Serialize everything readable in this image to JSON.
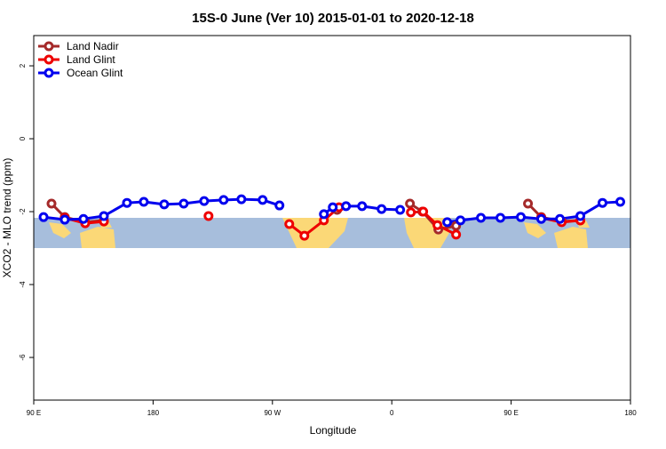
{
  "chart_data": {
    "type": "line",
    "title": "15S-0 June (Ver 10)   2015-01-01 to 2020-12-18",
    "x_label": "Longitude",
    "y_label": "XCO2 - MLO trend (ppm)",
    "xlim": [
      90,
      540
    ],
    "ylim": [
      -7.17,
      2.83
    ],
    "xticks": [
      {
        "value": 90,
        "label": "90 E"
      },
      {
        "value": 180,
        "label": "180"
      },
      {
        "value": 270,
        "label": "90 W"
      },
      {
        "value": 360,
        "label": "0"
      },
      {
        "value": 450,
        "label": "90 E"
      },
      {
        "value": 540,
        "label": "180"
      }
    ],
    "yticks": [
      2,
      0,
      -2,
      -4,
      -6
    ],
    "legend": "top-left",
    "series": [
      {
        "name": "Land Nadir",
        "color": "#a52a2a",
        "x": [
          103.4,
          113.4,
          128.8,
          142.9,
          null,
          318.8,
          null,
          373.7,
          383.1,
          395.1,
          408.5,
          null,
          462.7,
          472.7,
          488.1,
          502.2
        ],
        "values": [
          -1.78,
          -2.15,
          -2.29,
          -2.24,
          null,
          -1.95,
          null,
          -1.78,
          -2.0,
          -2.49,
          -2.39,
          null,
          -1.78,
          -2.15,
          -2.27,
          -2.24
        ]
      },
      {
        "name": "Land Glint",
        "color": "#ee0000",
        "x": [
          113.4,
          128.8,
          142.9,
          null,
          221.8,
          null,
          282.7,
          294.1,
          308.8,
          320.2,
          null,
          374.4,
          383.7,
          394.4,
          408.5,
          null,
          472.7,
          488.1,
          502.2
        ],
        "values": [
          -2.17,
          -2.32,
          -2.27,
          null,
          -2.12,
          null,
          -2.34,
          -2.66,
          -2.24,
          -1.88,
          null,
          -2.02,
          -2.0,
          -2.37,
          -2.63,
          null,
          -2.17,
          -2.29,
          -2.24
        ]
      },
      {
        "name": "Ocean Glint",
        "color": "#0000ee",
        "x": [
          97.4,
          113.4,
          127.5,
          142.9,
          160.3,
          173.0,
          188.4,
          203.1,
          218.5,
          233.2,
          246.6,
          262.6,
          275.3,
          null,
          308.8,
          315.5,
          325.5,
          337.6,
          352.3,
          366.3,
          null,
          401.8,
          411.8,
          427.2,
          441.9,
          457.3,
          472.7,
          486.8,
          502.2,
          518.9,
          532.3
        ],
        "values": [
          -2.15,
          -2.22,
          -2.2,
          -2.12,
          -1.76,
          -1.73,
          -1.8,
          -1.78,
          -1.71,
          -1.68,
          -1.66,
          -1.68,
          -1.83,
          null,
          -2.07,
          -1.88,
          -1.85,
          -1.85,
          -1.93,
          -1.95,
          null,
          -2.29,
          -2.24,
          -2.17,
          -2.17,
          -2.15,
          -2.2,
          -2.2,
          -2.12,
          -1.76,
          -1.73
        ]
      }
    ]
  }
}
